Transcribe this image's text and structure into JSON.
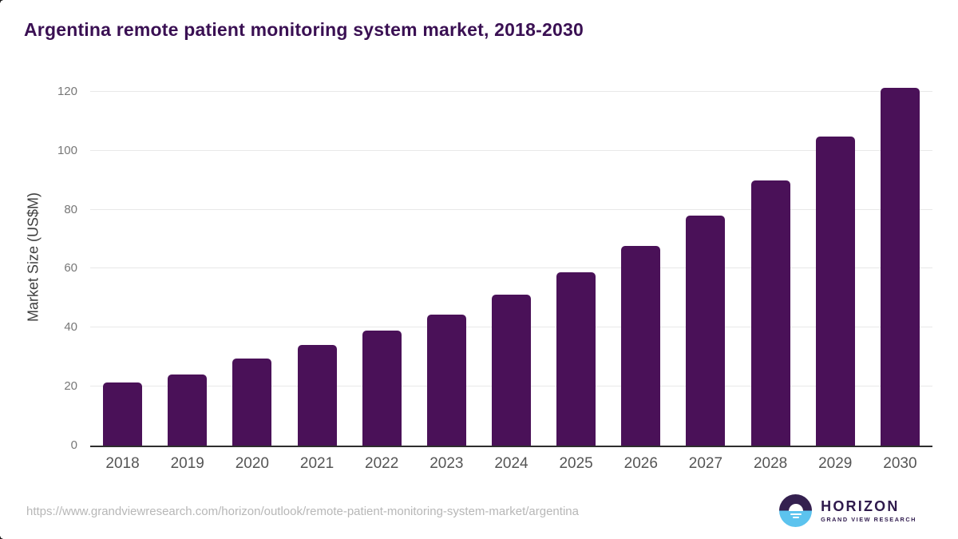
{
  "title": "Argentina remote patient monitoring system market, 2018-2030",
  "chart_data": {
    "type": "bar",
    "title": "Argentina remote patient monitoring system market, 2018-2030",
    "categories": [
      "2018",
      "2019",
      "2020",
      "2021",
      "2022",
      "2023",
      "2024",
      "2025",
      "2026",
      "2027",
      "2028",
      "2029",
      "2030"
    ],
    "values": [
      21.4,
      24.1,
      29.5,
      34.0,
      39.0,
      44.4,
      51.1,
      58.7,
      67.8,
      77.9,
      90.0,
      104.8,
      121.3
    ],
    "xlabel": "",
    "ylabel": "Market Size (US$M)",
    "ylim": [
      0,
      124
    ],
    "yticks": [
      0,
      20,
      40,
      60,
      80,
      100,
      120
    ],
    "grid": true,
    "legend": "none",
    "bar_color": "#4a1158"
  },
  "footer": {
    "source_url": "https://www.grandviewresearch.com/horizon/outlook/remote-patient-monitoring-system-market/argentina",
    "logo": {
      "brand": "HORIZON",
      "sub_brand": "GRAND VIEW RESEARCH"
    }
  },
  "colors": {
    "title": "#3a1053",
    "bar": "#4a1158",
    "gridline": "#e8e8e8",
    "axis_line": "#2e2e2e",
    "y_tick_label": "#777777",
    "x_tick_label": "#555555",
    "y_axis_title": "#3f3f3f",
    "source_url": "#b7b7b7",
    "logo_purple": "#2f1a4d",
    "logo_blue": "#5cc3ee"
  }
}
